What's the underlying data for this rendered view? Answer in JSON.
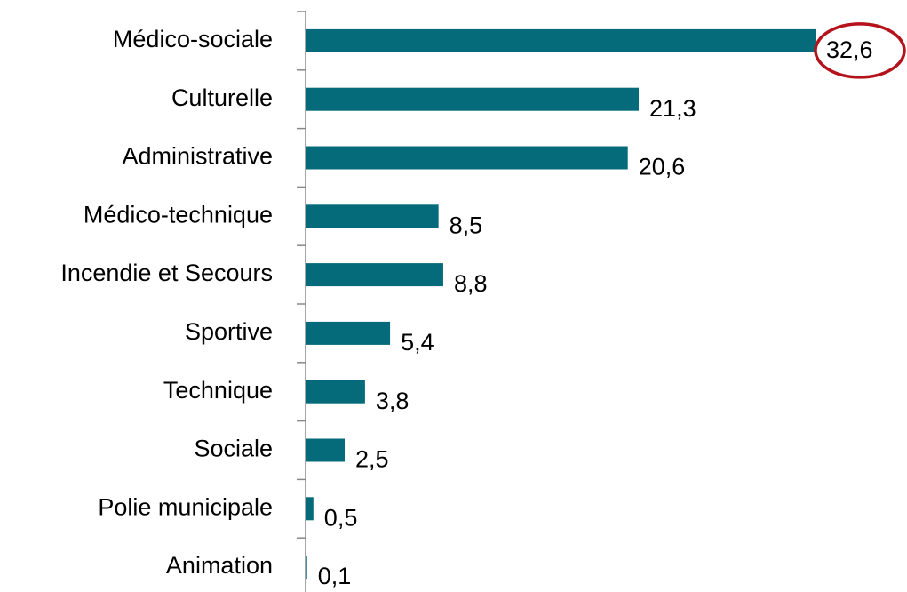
{
  "chart_data": {
    "type": "hbar",
    "categories": [
      "Médico-sociale",
      "Culturelle",
      "Administrative",
      "Médico-technique",
      "Incendie et Secours",
      "Sportive",
      "Technique",
      "Sociale",
      "Polie municipale",
      "Animation"
    ],
    "values": [
      32.6,
      21.3,
      20.6,
      8.5,
      8.8,
      5.4,
      3.8,
      2.5,
      0.5,
      0.1
    ],
    "value_labels": [
      "32,6",
      "21,3",
      "20,6",
      "8,5",
      "8,8",
      "5,4",
      "3,8",
      "2,5",
      "0,5",
      "0,1"
    ],
    "color": "#056b7a"
  }
}
